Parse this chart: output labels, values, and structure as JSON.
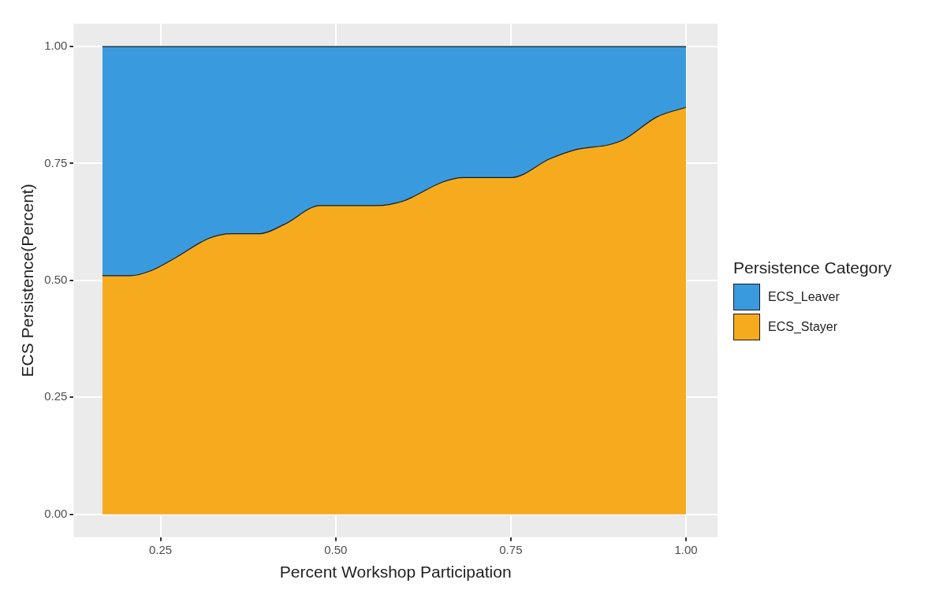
{
  "chart_data": {
    "type": "area",
    "xlabel": "Percent Workshop Participation",
    "ylabel": "ECS Persistence(Percent)",
    "legend_title": "Persistence Category",
    "stacked": true,
    "legend": "right",
    "grid": true,
    "x": [
      0.167,
      0.207,
      0.235,
      0.273,
      0.319,
      0.351,
      0.392,
      0.427,
      0.478,
      0.524,
      0.559,
      0.597,
      0.612,
      0.652,
      0.682,
      0.728,
      0.751,
      0.806,
      0.844,
      0.89,
      0.91,
      0.959,
      1.0
    ],
    "series": [
      {
        "name": "ECS_Stayer",
        "color": "#f5ab1d",
        "values": [
          0.51,
          0.51,
          0.52,
          0.55,
          0.59,
          0.6,
          0.6,
          0.62,
          0.66,
          0.66,
          0.66,
          0.67,
          0.68,
          0.71,
          0.72,
          0.72,
          0.72,
          0.76,
          0.78,
          0.79,
          0.8,
          0.85,
          0.87
        ]
      },
      {
        "name": "ECS_Leaver",
        "color": "#3a9ade",
        "values": [
          0.49,
          0.49,
          0.48,
          0.45,
          0.41,
          0.4,
          0.4,
          0.38,
          0.34,
          0.34,
          0.34,
          0.33,
          0.32,
          0.29,
          0.28,
          0.28,
          0.28,
          0.24,
          0.22,
          0.21,
          0.2,
          0.15,
          0.13
        ]
      }
    ],
    "xlim": [
      0.126,
      1.045
    ],
    "ylim": [
      -0.049,
      1.049
    ],
    "xticks": [
      {
        "value": 0.25,
        "label": "0.25"
      },
      {
        "value": 0.5,
        "label": "0.50"
      },
      {
        "value": 0.75,
        "label": "0.75"
      },
      {
        "value": 1,
        "label": "1.00"
      }
    ],
    "yticks": [
      {
        "value": 0,
        "label": "0.00"
      },
      {
        "value": 0.25,
        "label": "0.25"
      },
      {
        "value": 0.5,
        "label": "0.50"
      },
      {
        "value": 0.75,
        "label": "0.75"
      },
      {
        "value": 1,
        "label": "1.00"
      }
    ]
  }
}
